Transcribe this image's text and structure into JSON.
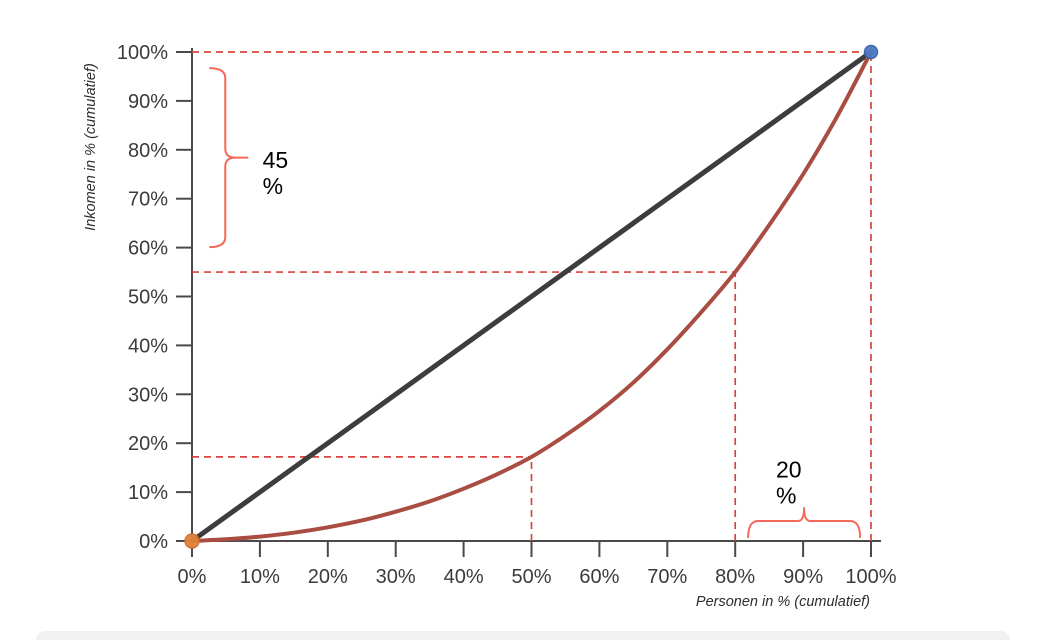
{
  "chart_data": {
    "type": "line",
    "title": "",
    "xlabel": "Personen in % (cumulatief)",
    "ylabel": "Inkomen in % (cumulatief)",
    "xlim": [
      0,
      100
    ],
    "ylim": [
      0,
      100
    ],
    "grid": false,
    "legend": null,
    "x_ticks": [
      0,
      10,
      20,
      30,
      40,
      50,
      60,
      70,
      80,
      90,
      100
    ],
    "x_tick_labels": [
      "0%",
      "10%",
      "20%",
      "30%",
      "40%",
      "50%",
      "60%",
      "70%",
      "80%",
      "90%",
      "100%"
    ],
    "y_ticks": [
      0,
      10,
      20,
      30,
      40,
      50,
      60,
      70,
      80,
      90,
      100
    ],
    "y_tick_labels": [
      "0%",
      "10%",
      "20%",
      "30%",
      "40%",
      "50%",
      "60%",
      "70%",
      "80%",
      "90%",
      "100%"
    ],
    "series": [
      {
        "name": "line-of-equality",
        "color": "#3d3d3d",
        "width": 5,
        "smooth": false,
        "points": [
          [
            0,
            0
          ],
          [
            100,
            100
          ]
        ]
      },
      {
        "name": "lorenz-curve",
        "color": "#a94c42",
        "width": 4,
        "smooth": true,
        "points": [
          [
            0,
            0
          ],
          [
            5,
            0.35
          ],
          [
            10,
            0.9
          ],
          [
            15,
            1.7
          ],
          [
            20,
            2.8
          ],
          [
            25,
            4.2
          ],
          [
            30,
            6.0
          ],
          [
            35,
            8.1
          ],
          [
            40,
            10.7
          ],
          [
            45,
            13.7
          ],
          [
            50,
            17.2
          ],
          [
            55,
            21.6
          ],
          [
            60,
            26.6
          ],
          [
            65,
            32.4
          ],
          [
            70,
            39.2
          ],
          [
            75,
            46.8
          ],
          [
            80,
            55
          ],
          [
            85,
            64.6
          ],
          [
            90,
            75
          ],
          [
            95,
            86.8
          ],
          [
            100,
            100
          ]
        ]
      }
    ],
    "guides": {
      "color": "#d8453f",
      "dash": "7 5",
      "width": 1.7,
      "lines": [
        {
          "type": "h",
          "y": 100,
          "x1": 0,
          "x2": 100
        },
        {
          "type": "v",
          "x": 100,
          "y1": 0,
          "y2": 100
        },
        {
          "type": "h",
          "y": 55,
          "x1": 0,
          "x2": 80
        },
        {
          "type": "v",
          "x": 80,
          "y1": 0,
          "y2": 55
        },
        {
          "type": "h",
          "y": 17.2,
          "x1": 0,
          "x2": 50
        },
        {
          "type": "v",
          "x": 50,
          "y1": 0,
          "y2": 17.2
        }
      ],
      "highlighted_points": [
        [
          50,
          17
        ],
        [
          80,
          55
        ],
        [
          100,
          100
        ]
      ]
    },
    "markers": [
      {
        "name": "origin-point",
        "x": 0,
        "y": 0,
        "r": 7,
        "fill": "#e2813b",
        "stroke": "#d06f2e"
      },
      {
        "name": "end-point",
        "x": 100,
        "y": 100,
        "r": 6.5,
        "fill": "#4a79c5",
        "stroke": "#3a62a8"
      }
    ],
    "braces": [
      {
        "orient": "vertical",
        "at_x": 4.9,
        "from_y": 60.1,
        "to_y": 96.7,
        "color": "#f4695c",
        "label_lines": [
          "45",
          "%"
        ],
        "label_x": 10.4,
        "label_y": 76.3
      },
      {
        "orient": "horizontal",
        "at_y": 4.1,
        "from_x": 81.9,
        "to_x": 98.4,
        "tip_rise": 13,
        "color": "#f4695c",
        "label_lines": [
          "20",
          "%"
        ],
        "label_x": 86.0,
        "label_y": 13.0
      }
    ],
    "axis_color": "#4a4a4a",
    "annotation_color": "#000000"
  },
  "page": {
    "bottom_bar": ""
  }
}
